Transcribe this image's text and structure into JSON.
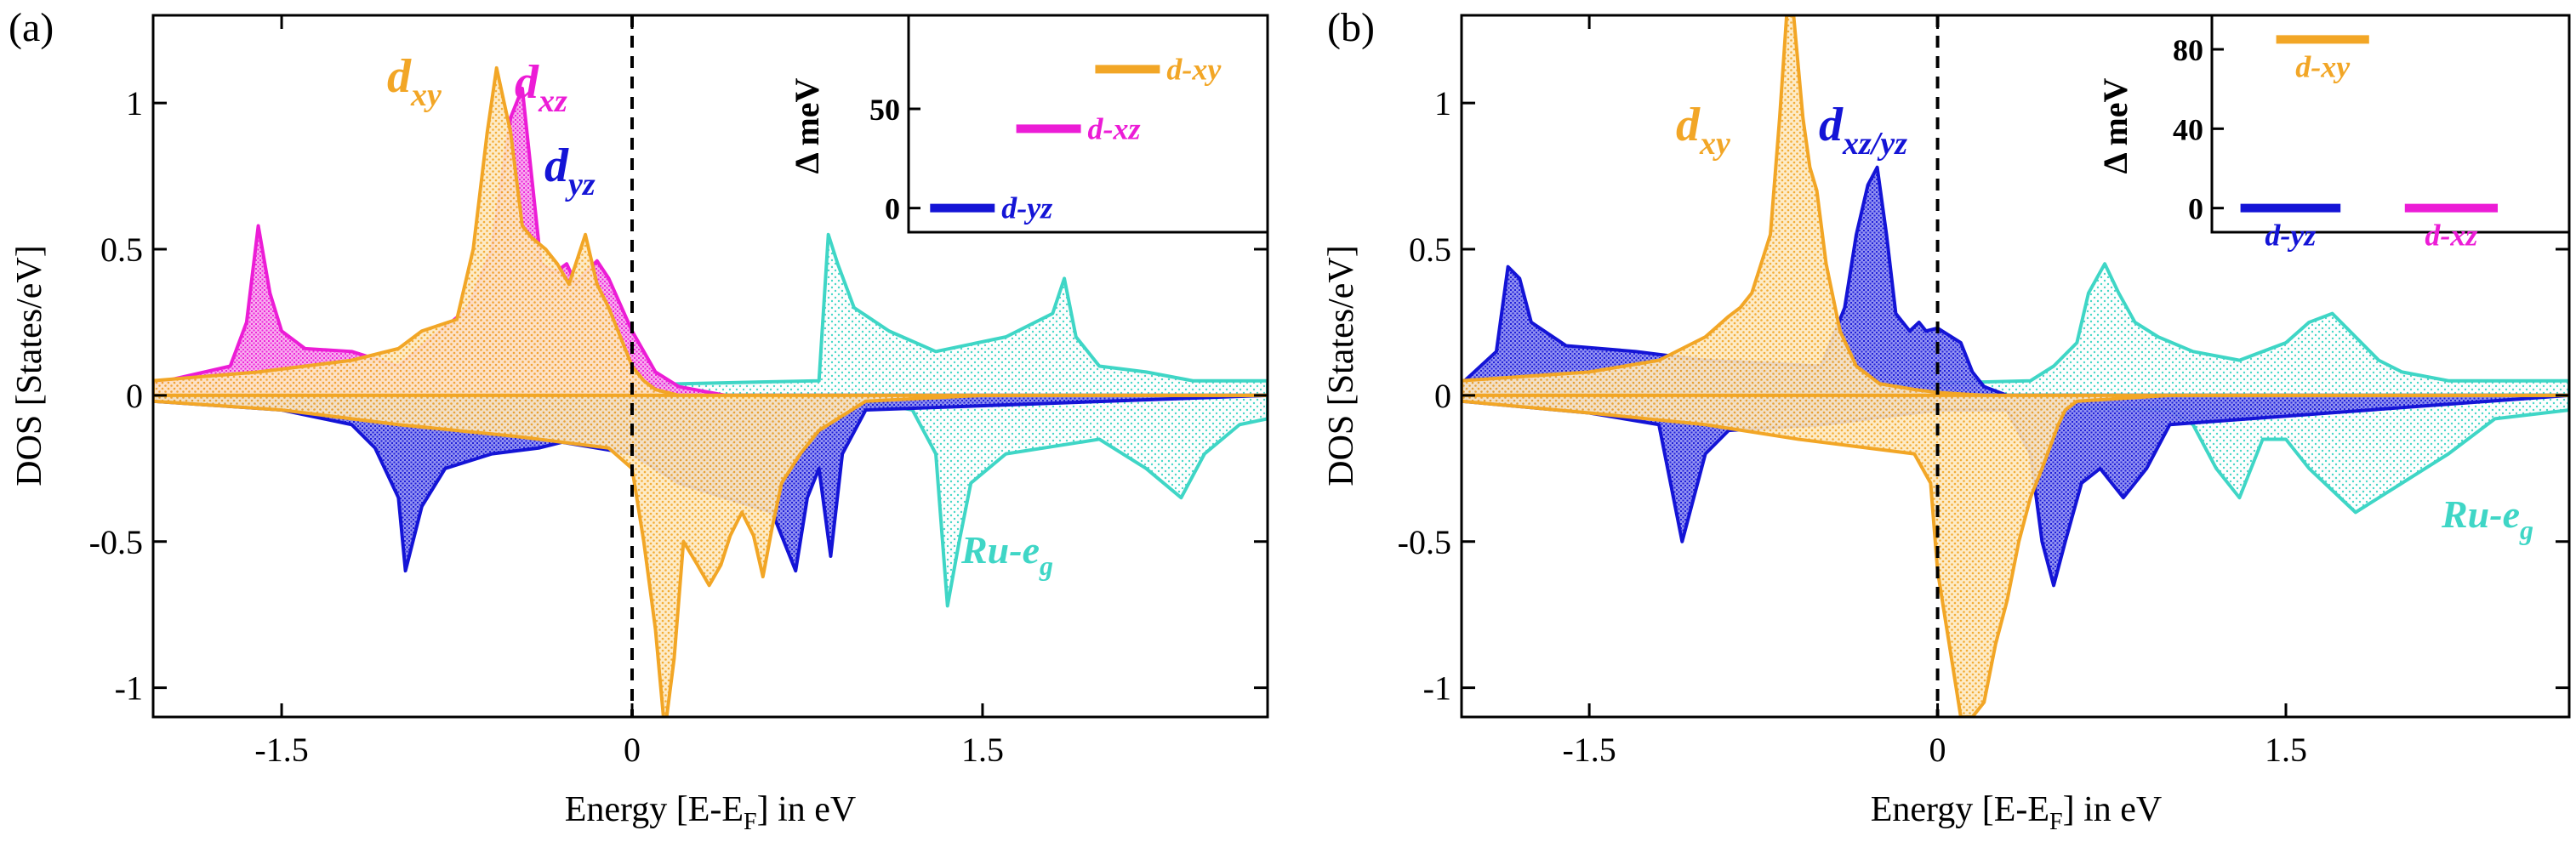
{
  "figure": {
    "colors": {
      "dxy": "#f2a626",
      "dxz": "#ec1cd6",
      "dyz": "#1414d6",
      "eg": "#3fd6c6",
      "other": "#cfcfcf",
      "axis": "#000000"
    }
  },
  "chart_data": [
    {
      "type": "area",
      "panel_label": "(a)",
      "xlabel": "Energy [E-E",
      "xlabel_sub": "F",
      "xlabel_tail": "] in eV",
      "ylabel": "DOS [States/eV]",
      "xlim": [
        -2.05,
        2.72
      ],
      "ylim": [
        -1.1,
        1.3
      ],
      "xticks": [
        -1.5,
        0,
        1.5
      ],
      "xtick_labels": [
        "-1.5",
        "0",
        "1.5"
      ],
      "yticks": [
        1,
        0.5,
        0,
        -0.5,
        -1
      ],
      "ytick_labels": [
        "1",
        "0.5",
        "0",
        "-0.5",
        "-1"
      ],
      "fermi_line": 0,
      "labels": [
        {
          "main": "d",
          "sub": "xy",
          "color_key": "dxy"
        },
        {
          "main": "d",
          "sub": "xz",
          "color_key": "dxz"
        },
        {
          "main": "d",
          "sub": "yz",
          "color_key": "dyz"
        },
        {
          "main": "Ru-e",
          "sub": "g",
          "color_key": "eg"
        }
      ],
      "series": [
        {
          "name": "d-xy up",
          "color_key": "dxy",
          "x": [
            -2.05,
            -1.6,
            -1.2,
            -1.0,
            -0.9,
            -0.75,
            -0.68,
            -0.62,
            -0.58,
            -0.52,
            -0.47,
            -0.43,
            -0.37,
            -0.32,
            -0.27,
            -0.2,
            -0.15,
            -0.1,
            -0.05,
            0,
            0.05,
            0.1,
            0.2,
            0.4,
            0.6,
            0.8,
            1.0,
            1.5,
            2.0,
            2.72
          ],
          "y": [
            0.05,
            0.08,
            0.12,
            0.16,
            0.22,
            0.26,
            0.5,
            0.9,
            1.12,
            0.9,
            0.58,
            0.54,
            0.5,
            0.45,
            0.38,
            0.55,
            0.38,
            0.3,
            0.2,
            0.1,
            0.05,
            0.02,
            0.0,
            -0.01,
            -0.01,
            0,
            0,
            0,
            0,
            0
          ]
        },
        {
          "name": "d-xy down",
          "color_key": "dxy",
          "x": [
            -2.05,
            -1.5,
            -1.0,
            -0.5,
            -0.3,
            -0.1,
            0,
            0.05,
            0.1,
            0.14,
            0.18,
            0.22,
            0.28,
            0.33,
            0.38,
            0.42,
            0.47,
            0.52,
            0.56,
            0.6,
            0.64,
            0.68,
            0.72,
            0.8,
            1.0,
            1.5,
            2.0,
            2.72
          ],
          "y": [
            -0.02,
            -0.05,
            -0.1,
            -0.14,
            -0.16,
            -0.18,
            -0.25,
            -0.5,
            -0.8,
            -1.15,
            -0.9,
            -0.5,
            -0.58,
            -0.65,
            -0.58,
            -0.48,
            -0.4,
            -0.48,
            -0.62,
            -0.45,
            -0.3,
            -0.25,
            -0.2,
            -0.12,
            -0.02,
            0,
            0,
            0
          ]
        },
        {
          "name": "d-xz up",
          "color_key": "dxz",
          "x": [
            -2.05,
            -1.72,
            -1.65,
            -1.6,
            -1.55,
            -1.5,
            -1.4,
            -1.2,
            -1.0,
            -0.7,
            -0.6,
            -0.52,
            -0.47,
            -0.43,
            -0.39,
            -0.33,
            -0.28,
            -0.24,
            -0.2,
            -0.15,
            -0.1,
            0,
            0.1,
            0.2,
            0.4,
            2.72
          ],
          "y": [
            0.04,
            0.1,
            0.25,
            0.58,
            0.35,
            0.22,
            0.16,
            0.15,
            0.1,
            0.3,
            0.5,
            0.95,
            1.05,
            0.75,
            0.45,
            0.42,
            0.45,
            0.38,
            0.42,
            0.46,
            0.4,
            0.22,
            0.08,
            0.03,
            0,
            0
          ]
        },
        {
          "name": "d-yz down",
          "color_key": "dyz",
          "x": [
            -2.05,
            -1.5,
            -1.2,
            -1.1,
            -1.0,
            -0.97,
            -0.9,
            -0.8,
            -0.6,
            -0.4,
            -0.3,
            0,
            0.2,
            0.4,
            0.6,
            0.7,
            0.75,
            0.8,
            0.85,
            0.9,
            1.0,
            2.72
          ],
          "y": [
            -0.02,
            -0.05,
            -0.1,
            -0.18,
            -0.35,
            -0.6,
            -0.38,
            -0.25,
            -0.2,
            -0.18,
            -0.16,
            -0.2,
            -0.3,
            -0.35,
            -0.4,
            -0.6,
            -0.35,
            -0.25,
            -0.55,
            -0.2,
            -0.05,
            0
          ]
        },
        {
          "name": "Ru-eg up",
          "color_key": "eg",
          "x": [
            -2.05,
            0.8,
            0.84,
            0.88,
            0.95,
            1.1,
            1.3,
            1.6,
            1.8,
            1.85,
            1.9,
            2.0,
            2.2,
            2.4,
            2.72
          ],
          "y": [
            0,
            0.05,
            0.55,
            0.45,
            0.3,
            0.22,
            0.15,
            0.2,
            0.28,
            0.4,
            0.2,
            0.1,
            0.08,
            0.05,
            0.05
          ]
        },
        {
          "name": "Ru-eg down",
          "color_key": "eg",
          "x": [
            -2.05,
            1.0,
            1.2,
            1.3,
            1.35,
            1.4,
            1.45,
            1.6,
            2.0,
            2.2,
            2.35,
            2.45,
            2.6,
            2.72
          ],
          "y": [
            0,
            -0.02,
            -0.05,
            -0.2,
            -0.72,
            -0.5,
            -0.3,
            -0.2,
            -0.15,
            -0.25,
            -0.35,
            -0.2,
            -0.1,
            -0.08
          ]
        }
      ],
      "inset": {
        "ylabel": "Δ meV",
        "ylim": [
          -10,
          95
        ],
        "yticks": [
          0,
          50
        ],
        "ytick_labels": [
          "0",
          "50"
        ],
        "levels": [
          {
            "label": "d-yz",
            "value": 0,
            "color_key": "dyz"
          },
          {
            "label": "d-xz",
            "value": 40,
            "color_key": "dxz"
          },
          {
            "label": "d-xy",
            "value": 70,
            "color_key": "dxy"
          }
        ]
      }
    },
    {
      "type": "area",
      "panel_label": "(b)",
      "xlabel": "Energy [E-E",
      "xlabel_sub": "F",
      "xlabel_tail": "] in eV",
      "ylabel": "DOS [States/eV]",
      "xlim": [
        -2.05,
        2.72
      ],
      "ylim": [
        -1.1,
        1.3
      ],
      "xticks": [
        -1.5,
        0,
        1.5
      ],
      "xtick_labels": [
        "-1.5",
        "0",
        "1.5"
      ],
      "yticks": [
        1,
        0.5,
        0,
        -0.5,
        -1
      ],
      "ytick_labels": [
        "1",
        "0.5",
        "0",
        "-0.5",
        "-1"
      ],
      "fermi_line": 0,
      "labels": [
        {
          "main": "d",
          "sub": "xy",
          "color_key": "dxy"
        },
        {
          "main": "d",
          "sub": "xz/yz",
          "color_key": "dyz"
        },
        {
          "main": "Ru-e",
          "sub": "g",
          "color_key": "eg"
        }
      ],
      "series": [
        {
          "name": "d-xy up",
          "color_key": "dxy",
          "x": [
            -2.05,
            -1.5,
            -1.2,
            -1.0,
            -0.9,
            -0.85,
            -0.8,
            -0.72,
            -0.68,
            -0.65,
            -0.62,
            -0.58,
            -0.55,
            -0.52,
            -0.48,
            -0.42,
            -0.35,
            -0.25,
            -0.1,
            0,
            0.2,
            2.72
          ],
          "y": [
            0.05,
            0.08,
            0.12,
            0.2,
            0.27,
            0.3,
            0.35,
            0.55,
            0.95,
            1.3,
            1.3,
            0.95,
            0.78,
            0.7,
            0.45,
            0.22,
            0.1,
            0.04,
            0.02,
            0.01,
            0,
            0
          ]
        },
        {
          "name": "d-xy down",
          "color_key": "dxy",
          "x": [
            -2.05,
            -1.5,
            -1.0,
            -0.6,
            -0.3,
            -0.1,
            -0.03,
            0,
            0.05,
            0.1,
            0.15,
            0.2,
            0.25,
            0.3,
            0.35,
            0.4,
            0.45,
            0.52,
            0.55,
            0.6,
            1.0,
            2.72
          ],
          "y": [
            -0.02,
            -0.06,
            -0.1,
            -0.15,
            -0.18,
            -0.2,
            -0.3,
            -0.6,
            -0.85,
            -1.1,
            -1.1,
            -1.05,
            -0.85,
            -0.7,
            -0.5,
            -0.35,
            -0.25,
            -0.1,
            -0.05,
            -0.02,
            0,
            0
          ]
        },
        {
          "name": "d-xz/yz up",
          "color_key": "dyz",
          "x": [
            -2.05,
            -1.9,
            -1.85,
            -1.8,
            -1.75,
            -1.6,
            -1.3,
            -1.0,
            -0.5,
            -0.4,
            -0.35,
            -0.3,
            -0.26,
            -0.22,
            -0.18,
            -0.12,
            -0.08,
            -0.05,
            0,
            0.1,
            0.15,
            0.2,
            0.3,
            2.72
          ],
          "y": [
            0.04,
            0.15,
            0.44,
            0.4,
            0.25,
            0.17,
            0.15,
            0.12,
            0.1,
            0.3,
            0.55,
            0.72,
            0.78,
            0.55,
            0.28,
            0.22,
            0.25,
            0.22,
            0.23,
            0.18,
            0.08,
            0.03,
            0,
            0
          ]
        },
        {
          "name": "d-xz/yz down",
          "color_key": "dyz",
          "x": [
            -2.05,
            -1.5,
            -1.2,
            -1.1,
            -1.05,
            -1.0,
            -0.9,
            -0.5,
            -0.3,
            0,
            0.3,
            0.4,
            0.45,
            0.5,
            0.55,
            0.62,
            0.7,
            0.75,
            0.8,
            0.9,
            1.0,
            2.72
          ],
          "y": [
            -0.02,
            -0.06,
            -0.1,
            -0.5,
            -0.35,
            -0.2,
            -0.12,
            -0.1,
            -0.08,
            -0.05,
            -0.05,
            -0.2,
            -0.5,
            -0.65,
            -0.5,
            -0.3,
            -0.25,
            -0.3,
            -0.35,
            -0.25,
            -0.1,
            0
          ]
        },
        {
          "name": "Ru-eg up",
          "color_key": "eg",
          "x": [
            -2.05,
            0.4,
            0.5,
            0.6,
            0.65,
            0.72,
            0.78,
            0.85,
            0.95,
            1.1,
            1.3,
            1.5,
            1.6,
            1.7,
            1.8,
            1.9,
            2.0,
            2.2,
            2.72
          ],
          "y": [
            0,
            0.05,
            0.1,
            0.18,
            0.35,
            0.45,
            0.35,
            0.25,
            0.2,
            0.15,
            0.12,
            0.18,
            0.25,
            0.28,
            0.2,
            0.12,
            0.08,
            0.05,
            0.05
          ]
        },
        {
          "name": "Ru-eg down",
          "color_key": "eg",
          "x": [
            -2.05,
            1.0,
            1.1,
            1.2,
            1.3,
            1.4,
            1.5,
            1.6,
            1.8,
            2.0,
            2.1,
            2.2,
            2.4,
            2.72
          ],
          "y": [
            0,
            -0.05,
            -0.1,
            -0.25,
            -0.35,
            -0.15,
            -0.15,
            -0.25,
            -0.4,
            -0.3,
            -0.25,
            -0.2,
            -0.08,
            -0.05
          ]
        }
      ],
      "inset": {
        "ylabel": "Δ meV",
        "ylim": [
          -10,
          95
        ],
        "yticks": [
          80,
          40,
          0
        ],
        "ytick_labels": [
          "80",
          "40",
          "0"
        ],
        "levels": [
          {
            "label": "d-xy",
            "value": 85,
            "color_key": "dxy"
          },
          {
            "label": "d-yz",
            "value": 0,
            "color_key": "dyz"
          },
          {
            "label": "d-xz",
            "value": 0,
            "color_key": "dxz"
          }
        ]
      }
    }
  ]
}
